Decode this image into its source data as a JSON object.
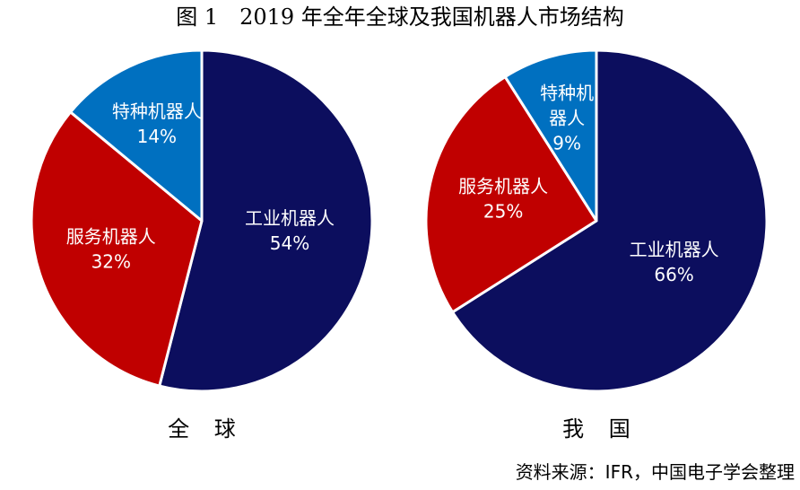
{
  "title": "图 1　2019 年全年全球及我国机器人市场结构",
  "source": "资料来源：IFR，中国电子学会整理",
  "colors": {
    "industrial": "#0c0e5e",
    "service": "#c00000",
    "special": "#0070c0",
    "slice_border": "#ffffff"
  },
  "chart_data": [
    {
      "type": "pie",
      "title": "全 球",
      "slices": [
        {
          "label": "工业机器人",
          "value": 54,
          "value_label": "54%",
          "color": "#0c0e5e"
        },
        {
          "label": "服务机器人",
          "value": 32,
          "value_label": "32%",
          "color": "#c00000"
        },
        {
          "label": "特种机器人",
          "value": 14,
          "value_label": "14%",
          "color": "#0070c0"
        }
      ]
    },
    {
      "type": "pie",
      "title": "我 国",
      "slices": [
        {
          "label": "工业机器人",
          "value": 66,
          "value_label": "66%",
          "color": "#0c0e5e"
        },
        {
          "label": "服务机器人",
          "value": 25,
          "value_label": "25%",
          "color": "#c00000"
        },
        {
          "label": "特种机器人",
          "value": 9,
          "value_label": "9%",
          "color": "#0070c0",
          "label_lines": [
            "特种机",
            "器人"
          ]
        }
      ]
    }
  ]
}
